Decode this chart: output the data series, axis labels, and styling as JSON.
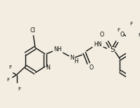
{
  "background_color": "#f2ede0",
  "bond_color": "#111111",
  "text_color": "#111111",
  "line_width": 1.0,
  "font_size": 5.8,
  "figsize": [
    1.99,
    1.54
  ],
  "dpi": 100,
  "xlim": [
    0,
    199
  ],
  "ylim": [
    0,
    154
  ]
}
